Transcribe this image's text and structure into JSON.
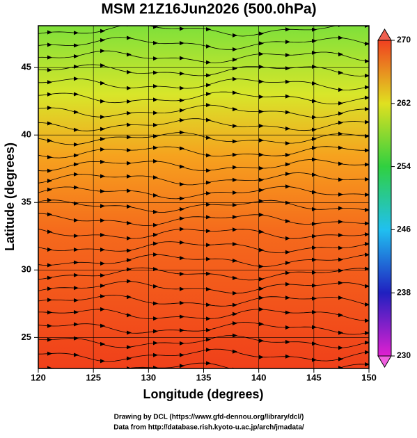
{
  "chart_data": {
    "type": "map",
    "title": "MSM 21Z16Jun2026 (500.0hPa)",
    "x_label": "Longitude (degrees)",
    "y_label": "Latitude  (degrees)",
    "xlim": [
      120,
      150
    ],
    "ylim": [
      22.7,
      48.1
    ],
    "xticks": [
      120,
      125,
      130,
      135,
      140,
      145,
      150
    ],
    "yticks": [
      25,
      30,
      35,
      40,
      45
    ],
    "colorbar": {
      "lim": [
        230,
        270
      ],
      "ticks": [
        230,
        238,
        246,
        254,
        262,
        270
      ]
    },
    "footer": [
      "Drawing by DCL (https://www.gfd-dennou.org/library/dcl/)",
      "Data from http://database.rish.kyoto-u.ac.jp/arch/jmadata/"
    ]
  }
}
